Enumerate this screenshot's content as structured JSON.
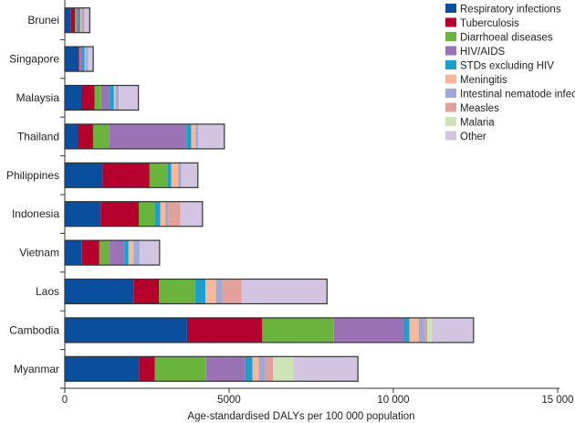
{
  "chart_data": {
    "type": "bar",
    "orientation": "horizontal",
    "stacked": true,
    "categories": [
      "Brunei",
      "Singapore",
      "Malaysia",
      "Thailand",
      "Philippines",
      "Indonesia",
      "Vietnam",
      "Laos",
      "Cambodia",
      "Myanmar"
    ],
    "series": [
      {
        "name": "Respiratory infections",
        "color": "#0a4f9e",
        "values": [
          190,
          390,
          500,
          390,
          1150,
          1090,
          520,
          2090,
          3720,
          2260
        ]
      },
      {
        "name": "Tuberculosis",
        "color": "#b5002d",
        "values": [
          120,
          50,
          410,
          470,
          1430,
          1160,
          530,
          780,
          2290,
          480
        ]
      },
      {
        "name": "Diarrhoeal diseases",
        "color": "#6ab43e",
        "values": [
          40,
          30,
          195,
          500,
          540,
          500,
          315,
          1100,
          2180,
          1560
        ]
      },
      {
        "name": "HIV/AIDS",
        "color": "#9a72b5",
        "values": [
          50,
          60,
          260,
          2340,
          0,
          0,
          445,
          0,
          2130,
          1190
        ]
      },
      {
        "name": "STDs excluding HIV",
        "color": "#1a9fcf",
        "values": [
          70,
          75,
          130,
          150,
          120,
          160,
          130,
          310,
          170,
          220
        ]
      },
      {
        "name": "Meningitis",
        "color": "#f9b899",
        "values": [
          40,
          30,
          55,
          130,
          210,
          150,
          150,
          320,
          280,
          190
        ]
      },
      {
        "name": "Intestinal nematode infections",
        "color": "#9fa9d8",
        "values": [
          80,
          70,
          90,
          75,
          90,
          90,
          185,
          200,
          200,
          200
        ]
      },
      {
        "name": "Measles",
        "color": "#e2a09a",
        "values": [
          20,
          0,
          0,
          0,
          0,
          370,
          0,
          580,
          60,
          240
        ]
      },
      {
        "name": "Malaria",
        "color": "#cfe3b8",
        "values": [
          0,
          0,
          0,
          0,
          0,
          0,
          0,
          0,
          140,
          610
        ]
      },
      {
        "name": "Other",
        "color": "#d3c5e2",
        "values": [
          150,
          160,
          600,
          800,
          510,
          670,
          610,
          2600,
          1270,
          1970
        ]
      }
    ],
    "xlabel": "Age-standardised DALYs per 100 000 population",
    "xlim": [
      0,
      15000
    ],
    "xticks": [
      "0",
      "5000",
      "10 000",
      "15 000"
    ],
    "xtick_values": [
      0,
      5000,
      10000,
      15000
    ],
    "legend_position": "top-right",
    "grid": false
  }
}
